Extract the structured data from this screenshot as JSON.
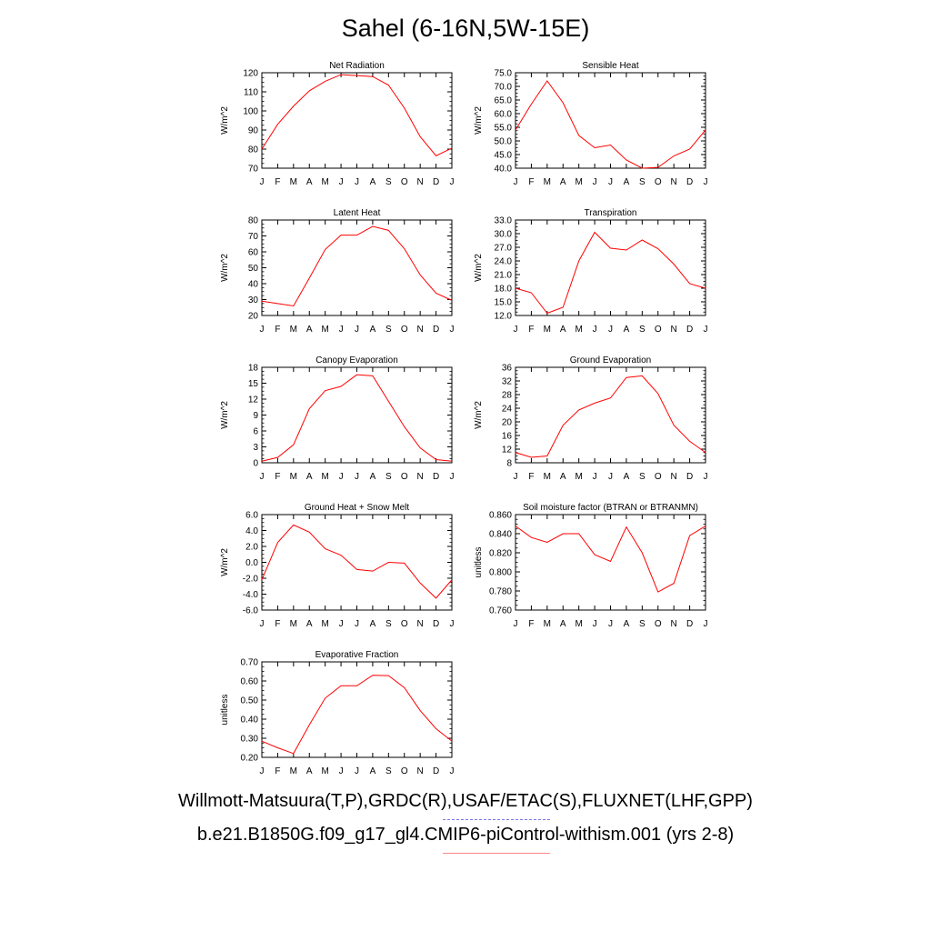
{
  "title": "Sahel (6-16N,5W-15E)",
  "legend": {
    "observations": "Willmott-Matsuura(T,P),GRDC(R),USAF/ETAC(S),FLUXNET(LHF,GPP)",
    "model": "b.e21.B1850G.f09_g17_gl4.CMIP6-piControl-withism.001 (yrs 2-8)"
  },
  "colors": {
    "model_line": "#ff0000",
    "obs_line": "#7777ee",
    "axes": "#000000"
  },
  "chart_data": [
    {
      "type": "line",
      "title": "Net Radiation",
      "ylabel": "W/m^2",
      "categories": [
        "J",
        "F",
        "M",
        "A",
        "M",
        "J",
        "J",
        "A",
        "S",
        "O",
        "N",
        "D",
        "J"
      ],
      "ylim": [
        70,
        120
      ],
      "yticks": [
        "70",
        "80",
        "90",
        "100",
        "110",
        "120"
      ],
      "series": [
        {
          "values": [
            80,
            93,
            102.5,
            110.5,
            115.5,
            119,
            118.5,
            118,
            113.5,
            101.5,
            86.5,
            76.5,
            80.5
          ]
        }
      ]
    },
    {
      "type": "line",
      "title": "Sensible Heat",
      "ylabel": "W/m^2",
      "categories": [
        "J",
        "F",
        "M",
        "A",
        "M",
        "J",
        "J",
        "A",
        "S",
        "O",
        "N",
        "D",
        "J"
      ],
      "ylim": [
        40,
        75
      ],
      "yticks": [
        "40.0",
        "45.0",
        "50.0",
        "55.0",
        "60.0",
        "65.0",
        "70.0",
        "75.0"
      ],
      "series": [
        {
          "values": [
            54,
            63.5,
            72,
            64,
            52,
            47.5,
            48.5,
            43,
            40,
            40.3,
            44.5,
            47,
            54
          ]
        }
      ]
    },
    {
      "type": "line",
      "title": "Latent Heat",
      "ylabel": "W/m^2",
      "categories": [
        "J",
        "F",
        "M",
        "A",
        "M",
        "J",
        "J",
        "A",
        "S",
        "O",
        "N",
        "D",
        "J"
      ],
      "ylim": [
        20,
        80
      ],
      "yticks": [
        "20",
        "30",
        "40",
        "50",
        "60",
        "70",
        "80"
      ],
      "series": [
        {
          "values": [
            29,
            27.5,
            26,
            43.5,
            61.5,
            70.5,
            70.5,
            76,
            73.5,
            62,
            45.5,
            34,
            29.5
          ]
        }
      ]
    },
    {
      "type": "line",
      "title": "Transpiration",
      "ylabel": "W/m^2",
      "categories": [
        "J",
        "F",
        "M",
        "A",
        "M",
        "J",
        "J",
        "A",
        "S",
        "O",
        "N",
        "D",
        "J"
      ],
      "ylim": [
        12,
        33
      ],
      "yticks": [
        "12.0",
        "15.0",
        "18.0",
        "21.0",
        "24.0",
        "27.0",
        "30.0",
        "33.0"
      ],
      "series": [
        {
          "values": [
            18,
            17,
            12.5,
            13.8,
            24,
            30.3,
            26.8,
            26.4,
            28.6,
            26.7,
            23.3,
            19,
            18
          ]
        }
      ]
    },
    {
      "type": "line",
      "title": "Canopy Evaporation",
      "ylabel": "W/m^2",
      "categories": [
        "J",
        "F",
        "M",
        "A",
        "M",
        "J",
        "J",
        "A",
        "S",
        "O",
        "N",
        "D",
        "J"
      ],
      "ylim": [
        0,
        18
      ],
      "yticks": [
        "0",
        "3",
        "6",
        "9",
        "12",
        "15",
        "18"
      ],
      "series": [
        {
          "values": [
            0.3,
            1,
            3.4,
            10.2,
            13.6,
            14.4,
            16.6,
            16.4,
            11.6,
            6.8,
            2.8,
            0.6,
            0.3
          ]
        }
      ]
    },
    {
      "type": "line",
      "title": "Ground Evaporation",
      "ylabel": "W/m^2",
      "categories": [
        "J",
        "F",
        "M",
        "A",
        "M",
        "J",
        "J",
        "A",
        "S",
        "O",
        "N",
        "D",
        "J"
      ],
      "ylim": [
        8,
        36
      ],
      "yticks": [
        "8",
        "12",
        "16",
        "20",
        "24",
        "28",
        "32",
        "36"
      ],
      "series": [
        {
          "values": [
            11,
            9.6,
            10,
            19,
            23.5,
            25.5,
            27,
            33,
            33.5,
            28.3,
            19,
            14.3,
            11
          ]
        }
      ]
    },
    {
      "type": "line",
      "title": "Ground Heat + Snow Melt",
      "ylabel": "W/m^2",
      "categories": [
        "J",
        "F",
        "M",
        "A",
        "M",
        "J",
        "J",
        "A",
        "S",
        "O",
        "N",
        "D",
        "J"
      ],
      "ylim": [
        -6,
        6
      ],
      "yticks": [
        "-6.0",
        "-4.0",
        "-2.0",
        "0.0",
        "2.0",
        "4.0",
        "6.0"
      ],
      "series": [
        {
          "values": [
            -2.2,
            2.5,
            4.7,
            3.8,
            1.7,
            0.9,
            -0.9,
            -1.1,
            0.0,
            -0.1,
            -2.6,
            -4.5,
            -2.2
          ]
        }
      ]
    },
    {
      "type": "line",
      "title": "Soil moisture factor (BTRAN or BTRANMN)",
      "ylabel": "unitless",
      "categories": [
        "J",
        "F",
        "M",
        "A",
        "M",
        "J",
        "J",
        "A",
        "S",
        "O",
        "N",
        "D",
        "J"
      ],
      "ylim": [
        0.76,
        0.86
      ],
      "yticks": [
        "0.760",
        "0.780",
        "0.800",
        "0.820",
        "0.840",
        "0.860"
      ],
      "series": [
        {
          "values": [
            0.848,
            0.836,
            0.831,
            0.84,
            0.84,
            0.818,
            0.811,
            0.847,
            0.82,
            0.779,
            0.788,
            0.838,
            0.848
          ]
        }
      ]
    },
    {
      "type": "line",
      "title": "Evaporative Fraction",
      "ylabel": "unitless",
      "categories": [
        "J",
        "F",
        "M",
        "A",
        "M",
        "J",
        "J",
        "A",
        "S",
        "O",
        "N",
        "D",
        "J"
      ],
      "ylim": [
        0.2,
        0.7
      ],
      "yticks": [
        "0.20",
        "0.30",
        "0.40",
        "0.50",
        "0.60",
        "0.70"
      ],
      "series": [
        {
          "values": [
            0.285,
            0.25,
            0.22,
            0.37,
            0.51,
            0.575,
            0.575,
            0.63,
            0.628,
            0.565,
            0.445,
            0.35,
            0.285
          ]
        }
      ]
    }
  ]
}
